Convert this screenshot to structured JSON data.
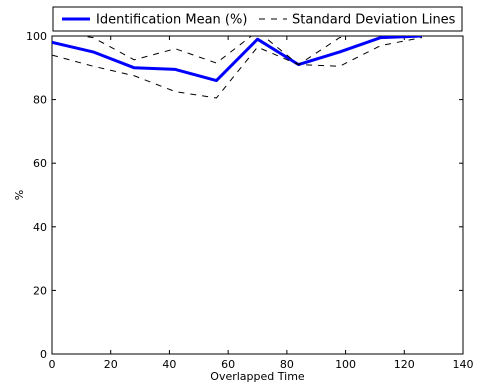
{
  "chart_data": {
    "type": "line",
    "title": "",
    "xlabel": "Overlapped Time",
    "ylabel": "%",
    "xlim": [
      0,
      140
    ],
    "ylim": [
      0,
      100
    ],
    "xticks": [
      0,
      20,
      40,
      60,
      80,
      100,
      120,
      140
    ],
    "yticks": [
      0,
      20,
      40,
      60,
      80,
      100
    ],
    "grid": false,
    "legend_position": "top, above plot",
    "series": [
      {
        "name": "Identification Mean (%)",
        "style": "solid",
        "color": "#0000ff",
        "x": [
          0,
          14,
          28,
          42,
          56,
          70,
          84,
          98,
          112,
          126
        ],
        "y": [
          98,
          95,
          90,
          89.5,
          86,
          99,
          91,
          95,
          99.5,
          100
        ]
      },
      {
        "name": "Standard Deviation Lines",
        "style": "dashed",
        "color": "#000000",
        "x": [
          0,
          14,
          28,
          42,
          56,
          70,
          84,
          98,
          112,
          126
        ],
        "y": [
          101.5,
          99.5,
          92.5,
          96,
          91.5,
          101.5,
          91,
          99.5,
          102,
          101.5
        ]
      },
      {
        "name": "",
        "style": "dashed",
        "color": "#000000",
        "x": [
          0,
          14,
          28,
          42,
          56,
          70,
          84,
          98,
          112,
          126
        ],
        "y": [
          94,
          90.5,
          87.5,
          82.5,
          80.5,
          96.5,
          91,
          90.5,
          97,
          99.5
        ]
      }
    ]
  }
}
